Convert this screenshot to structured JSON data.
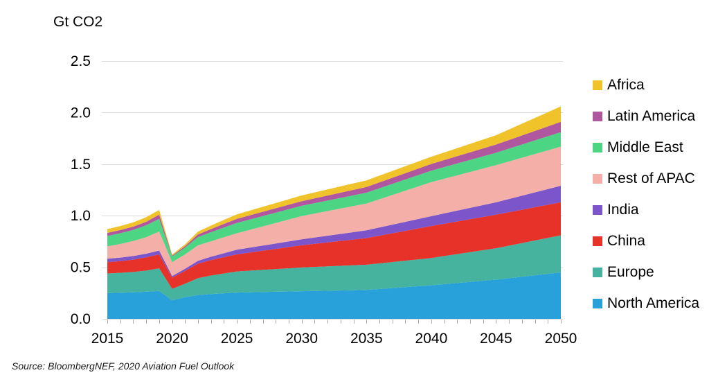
{
  "chart_data": {
    "type": "area",
    "stacked": true,
    "unit_label": "Gt CO2",
    "source": "Source: BloombergNEF, 2020 Aviation Fuel Outlook",
    "xlabel": "",
    "ylabel": "Gt CO2",
    "xlim": [
      2015,
      2050
    ],
    "ylim": [
      0,
      2.5
    ],
    "grid": true,
    "legend_position": "right",
    "x": [
      2015,
      2016,
      2017,
      2018,
      2019,
      2020,
      2021,
      2022,
      2023,
      2024,
      2025,
      2030,
      2035,
      2040,
      2045,
      2050
    ],
    "x_ticks": [
      "2015",
      "2020",
      "2025",
      "2030",
      "2035",
      "2040",
      "2045",
      "2050"
    ],
    "y_ticks": [
      "0.0",
      "0.5",
      "1.0",
      "1.5",
      "2.0",
      "2.5"
    ],
    "series": [
      {
        "name": "North America",
        "color": "#28A0DA",
        "values": [
          0.25,
          0.253,
          0.257,
          0.263,
          0.27,
          0.18,
          0.21,
          0.23,
          0.24,
          0.248,
          0.255,
          0.268,
          0.28,
          0.325,
          0.38,
          0.45
        ]
      },
      {
        "name": "Europe",
        "color": "#45B39E",
        "values": [
          0.19,
          0.193,
          0.197,
          0.205,
          0.22,
          0.11,
          0.13,
          0.165,
          0.18,
          0.192,
          0.205,
          0.23,
          0.245,
          0.265,
          0.305,
          0.36
        ]
      },
      {
        "name": "China",
        "color": "#E63229",
        "values": [
          0.11,
          0.114,
          0.12,
          0.128,
          0.135,
          0.11,
          0.125,
          0.14,
          0.15,
          0.158,
          0.165,
          0.215,
          0.258,
          0.31,
          0.325,
          0.32
        ]
      },
      {
        "name": "India",
        "color": "#7B55C9",
        "values": [
          0.033,
          0.034,
          0.035,
          0.036,
          0.037,
          0.015,
          0.02,
          0.028,
          0.032,
          0.038,
          0.045,
          0.058,
          0.075,
          0.095,
          0.12,
          0.16
        ]
      },
      {
        "name": "Rest of APAC",
        "color": "#F4AFA9",
        "values": [
          0.12,
          0.132,
          0.145,
          0.16,
          0.185,
          0.135,
          0.14,
          0.15,
          0.15,
          0.155,
          0.16,
          0.225,
          0.26,
          0.33,
          0.36,
          0.38
        ]
      },
      {
        "name": "Middle East",
        "color": "#4CD683",
        "values": [
          0.1,
          0.104,
          0.108,
          0.115,
          0.122,
          0.055,
          0.065,
          0.08,
          0.088,
          0.095,
          0.1,
          0.1,
          0.105,
          0.112,
          0.12,
          0.14
        ]
      },
      {
        "name": "Latin America",
        "color": "#AF58A0",
        "values": [
          0.03,
          0.031,
          0.032,
          0.034,
          0.042,
          0.008,
          0.015,
          0.025,
          0.03,
          0.035,
          0.04,
          0.045,
          0.055,
          0.065,
          0.08,
          0.1
        ]
      },
      {
        "name": "Africa",
        "color": "#F0C32A",
        "values": [
          0.037,
          0.039,
          0.041,
          0.044,
          0.045,
          0.01,
          0.018,
          0.028,
          0.034,
          0.038,
          0.043,
          0.055,
          0.065,
          0.07,
          0.09,
          0.15
        ]
      }
    ]
  }
}
